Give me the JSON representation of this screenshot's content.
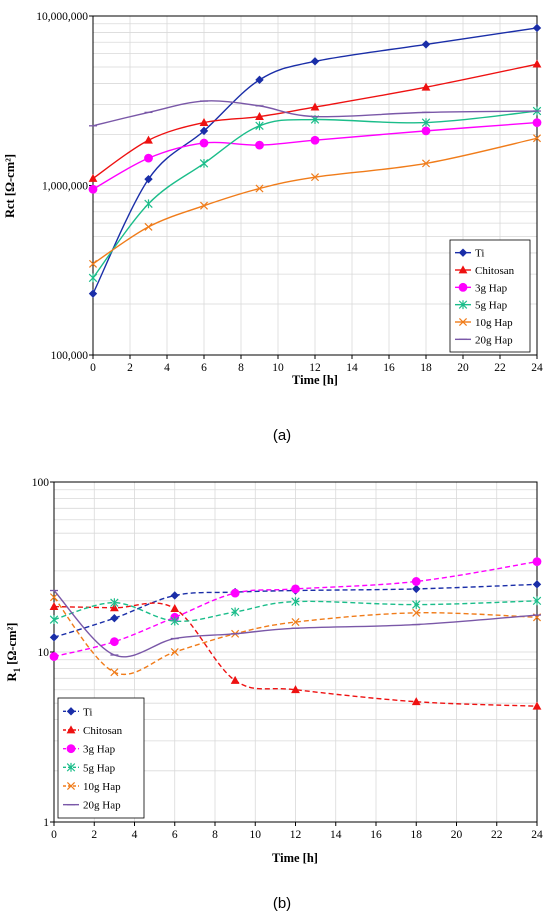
{
  "chart_data": [
    {
      "type": "line",
      "caption": "(a)",
      "xlabel": "Time [h]",
      "ylabel": "Rct [Ω-cm²]",
      "yscale": "log",
      "xlim": [
        0,
        24
      ],
      "ylim": [
        100000,
        10000000
      ],
      "x_ticks": [
        0,
        2,
        4,
        6,
        8,
        10,
        12,
        14,
        16,
        18,
        20,
        22,
        24
      ],
      "y_ticks": [
        100000,
        1000000,
        10000000
      ],
      "y_tick_labels": [
        "100,000",
        "1,000,000",
        "10,000,000"
      ],
      "grid": true,
      "legend": "bottom-right",
      "series": [
        {
          "name": "Ti",
          "color": "#1a2ea8",
          "marker": "diamond",
          "dash": "solid",
          "x": [
            0,
            3,
            6,
            9,
            12,
            18,
            24
          ],
          "y": [
            230000,
            1090000,
            2100000,
            4200000,
            5400000,
            6800000,
            8500000
          ]
        },
        {
          "name": "Chitosan",
          "color": "#ee1111",
          "marker": "triangle",
          "dash": "solid",
          "x": [
            0,
            3,
            6,
            9,
            12,
            18,
            24
          ],
          "y": [
            1100000,
            1850000,
            2350000,
            2550000,
            2900000,
            3800000,
            5200000
          ]
        },
        {
          "name": "3g Hap",
          "color": "#ff00ff",
          "marker": "circle",
          "dash": "solid",
          "x": [
            0,
            3,
            6,
            9,
            12,
            18,
            24
          ],
          "y": [
            950000,
            1450000,
            1780000,
            1730000,
            1850000,
            2100000,
            2350000
          ]
        },
        {
          "name": "5g Hap",
          "color": "#1bbd8a",
          "marker": "asterisk",
          "dash": "solid",
          "x": [
            0,
            3,
            6,
            9,
            12,
            18,
            24
          ],
          "y": [
            285000,
            780000,
            1350000,
            2250000,
            2450000,
            2350000,
            2750000
          ]
        },
        {
          "name": "10g Hap",
          "color": "#f07c1a",
          "marker": "x",
          "dash": "solid",
          "x": [
            0,
            3,
            6,
            9,
            12,
            18,
            24
          ],
          "y": [
            345000,
            570000,
            760000,
            960000,
            1120000,
            1350000,
            1900000
          ]
        },
        {
          "name": "20g Hap",
          "color": "#7a58a8",
          "marker": "line",
          "dash": "solid",
          "x": [
            0,
            3,
            6,
            9,
            12,
            18,
            24
          ],
          "y": [
            2250000,
            2700000,
            3150000,
            2950000,
            2550000,
            2700000,
            2750000
          ]
        }
      ]
    },
    {
      "type": "line",
      "caption": "(b)",
      "xlabel": "Time [h]",
      "ylabel_main": "R",
      "ylabel_sub": "1",
      "ylabel_rest": " [Ω-cm²]",
      "yscale": "log",
      "xlim": [
        0,
        24
      ],
      "ylim": [
        1,
        100
      ],
      "x_ticks": [
        0,
        2,
        4,
        6,
        8,
        10,
        12,
        14,
        16,
        18,
        20,
        22,
        24
      ],
      "y_ticks": [
        1,
        10,
        100
      ],
      "y_tick_labels": [
        "1",
        "10",
        "100"
      ],
      "grid": true,
      "legend": "bottom-left",
      "series": [
        {
          "name": "Ti",
          "color": "#1a2ea8",
          "marker": "diamond",
          "dash": "dashed",
          "x": [
            0,
            3,
            6,
            9,
            12,
            18,
            24
          ],
          "y": [
            12.2,
            15.8,
            21.5,
            22.5,
            23.0,
            23.5,
            25.0
          ]
        },
        {
          "name": "Chitosan",
          "color": "#ee1111",
          "marker": "triangle",
          "dash": "dashed",
          "x": [
            0,
            3,
            6,
            9,
            12,
            18,
            24
          ],
          "y": [
            18.5,
            18.2,
            18.0,
            6.8,
            6.0,
            5.1,
            4.8
          ]
        },
        {
          "name": "3g Hap",
          "color": "#ff00ff",
          "marker": "circle",
          "dash": "dashed",
          "x": [
            0,
            3,
            6,
            9,
            12,
            18,
            24
          ],
          "y": [
            9.4,
            11.5,
            16.0,
            22.2,
            23.5,
            26.0,
            34.0
          ]
        },
        {
          "name": "5g Hap",
          "color": "#1bbd8a",
          "marker": "asterisk",
          "dash": "dashed",
          "x": [
            0,
            3,
            6,
            9,
            12,
            18,
            24
          ],
          "y": [
            15.5,
            19.5,
            15.2,
            17.2,
            19.8,
            19.0,
            20.0
          ]
        },
        {
          "name": "10g Hap",
          "color": "#f07c1a",
          "marker": "x",
          "dash": "dashed",
          "x": [
            0,
            3,
            6,
            9,
            12,
            18,
            24
          ],
          "y": [
            21.0,
            7.6,
            10.0,
            12.8,
            15.0,
            17.0,
            16.0
          ]
        },
        {
          "name": "20g Hap",
          "color": "#7a58a8",
          "marker": "line",
          "dash": "solid",
          "x": [
            0,
            3,
            6,
            9,
            12,
            18,
            24
          ],
          "y": [
            23.0,
            9.6,
            12.0,
            12.8,
            13.8,
            14.5,
            16.5
          ]
        }
      ]
    }
  ]
}
